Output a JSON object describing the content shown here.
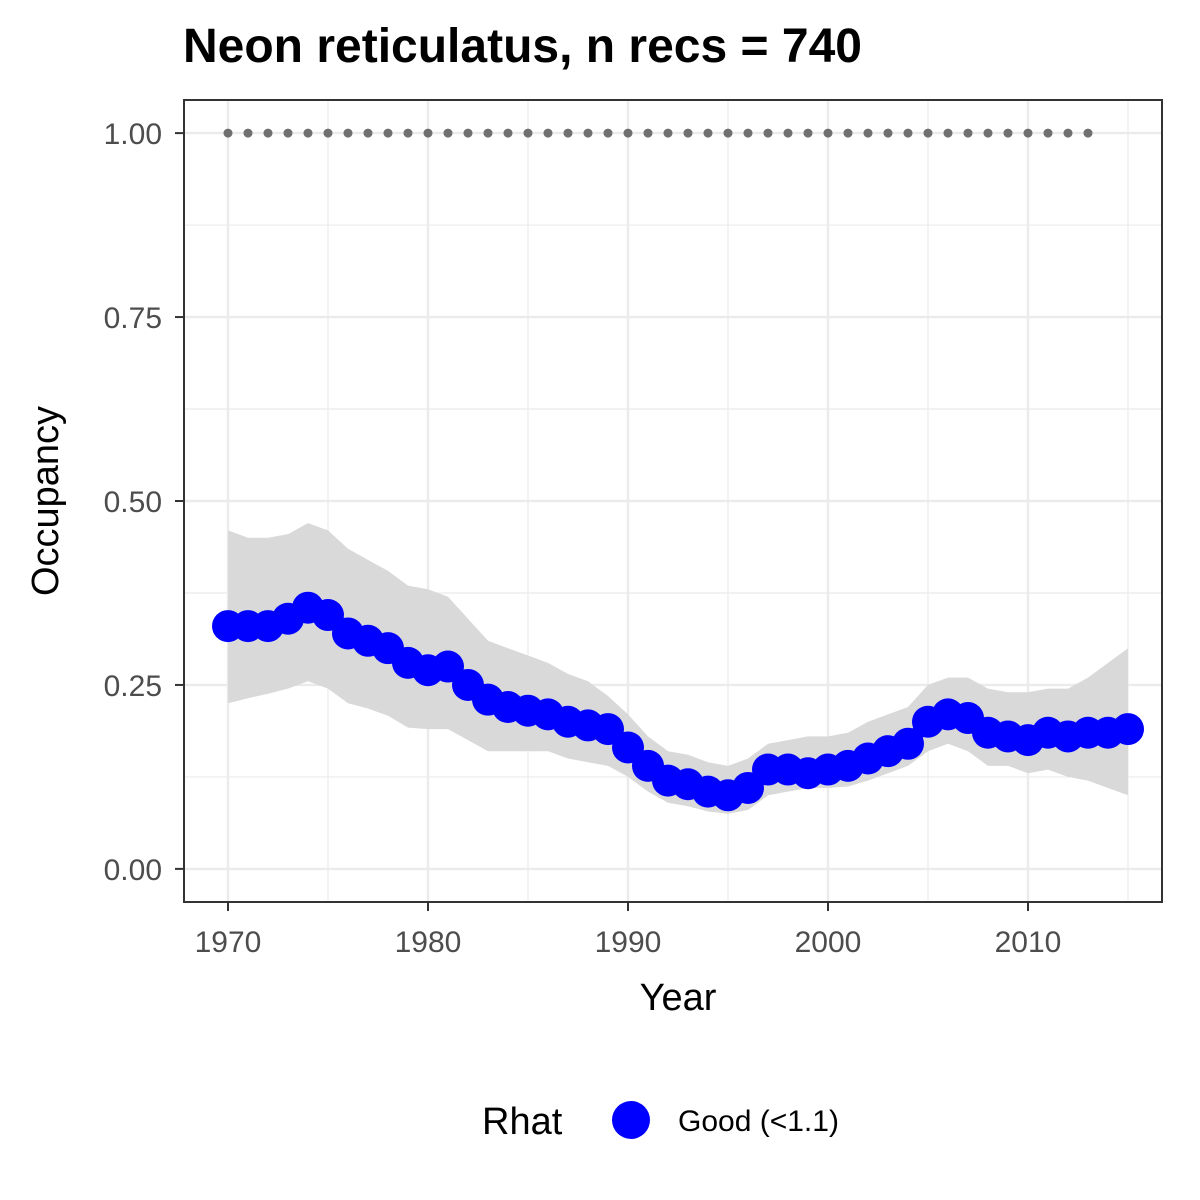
{
  "chart_data": {
    "type": "line",
    "title": "Neon reticulatus, n recs = 740",
    "xlabel": "Year",
    "ylabel": "Occupancy",
    "xlim": [
      1967.8,
      2016.7
    ],
    "ylim": [
      -0.045,
      1.045
    ],
    "x_ticks": [
      1970,
      1980,
      1990,
      2000,
      2010
    ],
    "x_tick_labels": [
      "1970",
      "1980",
      "1990",
      "2000",
      "2010"
    ],
    "y_ticks": [
      0,
      0.25,
      0.5,
      0.75,
      1
    ],
    "y_tick_labels": [
      "0.00",
      "0.25",
      "0.50",
      "0.75",
      "1.00"
    ],
    "grid": true,
    "legend": {
      "title": "Rhat",
      "position": "bottom",
      "entries": [
        {
          "label": "Good (<1.1)",
          "color": "#0000ff"
        }
      ]
    },
    "series": [
      {
        "name": "Good (<1.1)",
        "color": "#0000ff",
        "x": [
          1970,
          1971,
          1972,
          1973,
          1974,
          1975,
          1976,
          1977,
          1978,
          1979,
          1980,
          1981,
          1982,
          1983,
          1984,
          1985,
          1986,
          1987,
          1988,
          1989,
          1990,
          1991,
          1992,
          1993,
          1994,
          1995,
          1996,
          1997,
          1998,
          1999,
          2000,
          2001,
          2002,
          2003,
          2004,
          2005,
          2006,
          2007,
          2008,
          2009,
          2010,
          2011,
          2012,
          2013,
          2014,
          2015
        ],
        "y": [
          0.33,
          0.33,
          0.33,
          0.34,
          0.355,
          0.345,
          0.32,
          0.31,
          0.3,
          0.28,
          0.27,
          0.275,
          0.25,
          0.23,
          0.22,
          0.215,
          0.21,
          0.2,
          0.195,
          0.19,
          0.165,
          0.14,
          0.12,
          0.115,
          0.105,
          0.1,
          0.11,
          0.135,
          0.135,
          0.13,
          0.135,
          0.14,
          0.15,
          0.16,
          0.17,
          0.2,
          0.21,
          0.205,
          0.185,
          0.18,
          0.175,
          0.185,
          0.18,
          0.185,
          0.185,
          0.19
        ]
      }
    ],
    "interval": {
      "color": "#d9d9d9",
      "lower": [
        0.225,
        0.232,
        0.238,
        0.245,
        0.255,
        0.245,
        0.225,
        0.218,
        0.208,
        0.192,
        0.19,
        0.19,
        0.175,
        0.16,
        0.16,
        0.16,
        0.16,
        0.15,
        0.145,
        0.14,
        0.125,
        0.105,
        0.09,
        0.085,
        0.078,
        0.075,
        0.08,
        0.1,
        0.105,
        0.11,
        0.11,
        0.112,
        0.12,
        0.13,
        0.14,
        0.16,
        0.17,
        0.16,
        0.14,
        0.14,
        0.13,
        0.135,
        0.125,
        0.12,
        0.11,
        0.1
      ],
      "upper": [
        0.46,
        0.45,
        0.45,
        0.455,
        0.47,
        0.46,
        0.435,
        0.42,
        0.405,
        0.385,
        0.38,
        0.37,
        0.34,
        0.31,
        0.3,
        0.29,
        0.28,
        0.265,
        0.255,
        0.235,
        0.21,
        0.18,
        0.16,
        0.155,
        0.145,
        0.14,
        0.15,
        0.17,
        0.175,
        0.18,
        0.18,
        0.185,
        0.2,
        0.21,
        0.22,
        0.25,
        0.26,
        0.26,
        0.245,
        0.24,
        0.24,
        0.245,
        0.245,
        0.26,
        0.28,
        0.3
      ]
    },
    "reference": {
      "color": "#707070",
      "x": [
        1970,
        1971,
        1972,
        1973,
        1974,
        1975,
        1976,
        1977,
        1978,
        1979,
        1980,
        1981,
        1982,
        1983,
        1984,
        1985,
        1986,
        1987,
        1988,
        1989,
        1990,
        1991,
        1992,
        1993,
        1994,
        1995,
        1996,
        1997,
        1998,
        1999,
        2000,
        2001,
        2002,
        2003,
        2004,
        2005,
        2006,
        2007,
        2008,
        2009,
        2010,
        2011,
        2012,
        2013
      ],
      "y": 1.0
    }
  }
}
